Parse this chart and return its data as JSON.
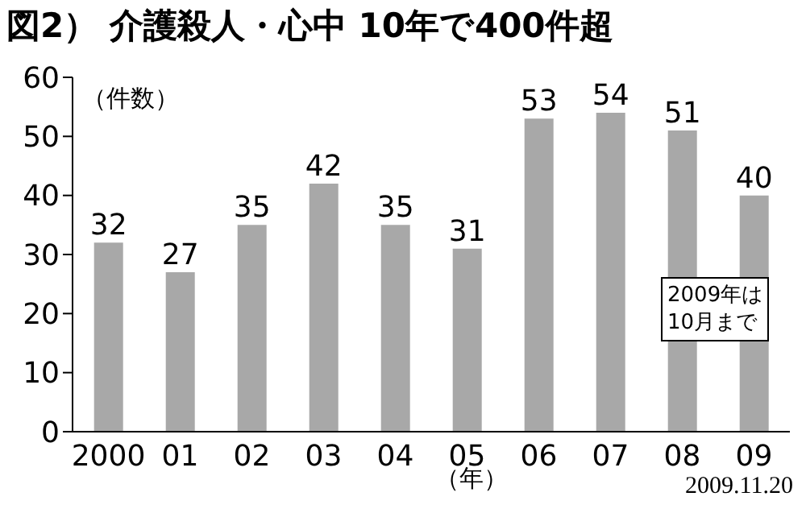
{
  "chart_data": {
    "type": "bar",
    "title": "図2） 介護殺人・心中 10年で400件超",
    "ylabel": "（件数）",
    "xlabel": "（年）",
    "categories": [
      "2000",
      "01",
      "02",
      "03",
      "04",
      "05",
      "06",
      "07",
      "08",
      "09"
    ],
    "values": [
      32,
      27,
      35,
      42,
      35,
      31,
      53,
      54,
      51,
      40
    ],
    "color": "#a8a8a8",
    "ylim": [
      0,
      60
    ],
    "yticks": [
      0,
      10,
      20,
      30,
      40,
      50,
      60
    ],
    "data_labels": true,
    "grid": false,
    "legend": false,
    "annotations": [
      "2009年は\n10月まで",
      "2009.11.20"
    ]
  }
}
